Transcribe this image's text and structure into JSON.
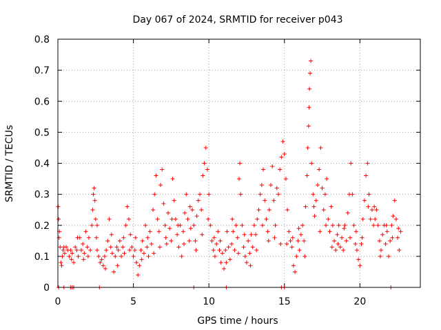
{
  "chart_data": {
    "type": "scatter",
    "title": "Day 067 of 2024, SRMTID for receiver p043",
    "xlabel": "GPS time / hours",
    "ylabel": "SRMTID / TECUs",
    "xlim": [
      0,
      24
    ],
    "ylim": [
      0,
      0.8
    ],
    "x_ticks": [
      0,
      5,
      10,
      15,
      20
    ],
    "x_tick_labels": [
      "0",
      "5",
      "10",
      "15",
      "20"
    ],
    "y_ticks": [
      0,
      0.1,
      0.2,
      0.3,
      0.4,
      0.5,
      0.6,
      0.7,
      0.8
    ],
    "y_tick_labels": [
      "0",
      "0.1",
      "0.2",
      "0.3",
      "0.4",
      "0.5",
      "0.6",
      "0.7",
      "0.8"
    ],
    "grid": true,
    "marker": "+",
    "series_color": "#ff0000",
    "series": [
      {
        "name": "SRMTID",
        "points": [
          [
            0.02,
            0.26
          ],
          [
            0.05,
            0.22
          ],
          [
            0.1,
            0.18
          ],
          [
            0.15,
            0.13
          ],
          [
            0.2,
            0.08
          ],
          [
            0.25,
            0.07
          ],
          [
            0.3,
            0.1
          ],
          [
            0.35,
            0.12
          ],
          [
            0.45,
            0.11
          ],
          [
            0.55,
            0.13
          ],
          [
            0.65,
            0.12
          ],
          [
            0.75,
            0.1
          ],
          [
            0.85,
            0.12
          ],
          [
            0.95,
            0.11
          ],
          [
            1.05,
            0.08
          ],
          [
            1.15,
            0.13
          ],
          [
            1.25,
            0.12
          ],
          [
            1.35,
            0.1
          ],
          [
            1.45,
            0.16
          ],
          [
            1.55,
            0.12
          ],
          [
            1.65,
            0.14
          ],
          [
            1.75,
            0.11
          ],
          [
            1.85,
            0.18
          ],
          [
            1.95,
            0.13
          ],
          [
            2.05,
            0.16
          ],
          [
            2.15,
            0.12
          ],
          [
            2.25,
            0.2
          ],
          [
            2.3,
            0.25
          ],
          [
            2.35,
            0.3
          ],
          [
            2.4,
            0.32
          ],
          [
            2.45,
            0.28
          ],
          [
            2.5,
            0.22
          ],
          [
            2.55,
            0.16
          ],
          [
            2.6,
            0.12
          ],
          [
            2.7,
            0.1
          ],
          [
            2.8,
            0.08
          ],
          [
            2.9,
            0.09
          ],
          [
            3.0,
            0.07
          ],
          [
            3.1,
            0.1
          ],
          [
            3.2,
            0.12
          ],
          [
            3.3,
            0.15
          ],
          [
            3.4,
            0.22
          ],
          [
            3.5,
            0.13
          ],
          [
            3.6,
            0.11
          ],
          [
            3.7,
            0.05
          ],
          [
            3.8,
            0.1
          ],
          [
            3.9,
            0.13
          ],
          [
            4.0,
            0.12
          ],
          [
            4.1,
            0.15
          ],
          [
            4.2,
            0.1
          ],
          [
            4.3,
            0.13
          ],
          [
            4.4,
            0.11
          ],
          [
            4.5,
            0.2
          ],
          [
            4.6,
            0.26
          ],
          [
            4.7,
            0.22
          ],
          [
            4.8,
            0.17
          ],
          [
            4.9,
            0.13
          ],
          [
            5.0,
            0.1
          ],
          [
            5.1,
            0.12
          ],
          [
            5.2,
            0.08
          ],
          [
            5.3,
            0.04
          ],
          [
            5.4,
            0.07
          ],
          [
            5.5,
            0.12
          ],
          [
            5.6,
            0.15
          ],
          [
            5.7,
            0.11
          ],
          [
            5.8,
            0.2
          ],
          [
            5.9,
            0.13
          ],
          [
            6.0,
            0.1
          ],
          [
            6.1,
            0.18
          ],
          [
            6.2,
            0.14
          ],
          [
            6.3,
            0.25
          ],
          [
            6.4,
            0.3
          ],
          [
            6.5,
            0.36
          ],
          [
            6.6,
            0.22
          ],
          [
            6.7,
            0.18
          ],
          [
            6.8,
            0.33
          ],
          [
            6.9,
            0.38
          ],
          [
            7.0,
            0.27
          ],
          [
            7.1,
            0.2
          ],
          [
            7.2,
            0.14
          ],
          [
            7.3,
            0.24
          ],
          [
            7.4,
            0.19
          ],
          [
            7.5,
            0.15
          ],
          [
            7.6,
            0.35
          ],
          [
            7.7,
            0.28
          ],
          [
            7.8,
            0.22
          ],
          [
            7.9,
            0.17
          ],
          [
            8.0,
            0.13
          ],
          [
            8.1,
            0.2
          ],
          [
            8.2,
            0.1
          ],
          [
            8.3,
            0.18
          ],
          [
            8.4,
            0.24
          ],
          [
            8.5,
            0.3
          ],
          [
            8.6,
            0.22
          ],
          [
            8.7,
            0.15
          ],
          [
            8.8,
            0.19
          ],
          [
            8.9,
            0.25
          ],
          [
            9.0,
            0.2
          ],
          [
            9.1,
            0.15
          ],
          [
            9.2,
            0.23
          ],
          [
            9.3,
            0.28
          ],
          [
            9.4,
            0.3
          ],
          [
            9.5,
            0.25
          ],
          [
            9.6,
            0.36
          ],
          [
            9.7,
            0.4
          ],
          [
            9.8,
            0.45
          ],
          [
            9.9,
            0.38
          ],
          [
            10.0,
            0.3
          ],
          [
            10.1,
            0.2
          ],
          [
            10.2,
            0.15
          ],
          [
            10.3,
            0.12
          ],
          [
            10.4,
            0.1
          ],
          [
            10.5,
            0.14
          ],
          [
            10.6,
            0.18
          ],
          [
            10.7,
            0.12
          ],
          [
            10.8,
            0.08
          ],
          [
            10.9,
            0.11
          ],
          [
            11.0,
            0.06
          ],
          [
            11.1,
            0.12
          ],
          [
            11.2,
            0.18
          ],
          [
            11.3,
            0.13
          ],
          [
            11.4,
            0.09
          ],
          [
            11.5,
            0.14
          ],
          [
            11.6,
            0.18
          ],
          [
            11.7,
            0.12
          ],
          [
            11.8,
            0.2
          ],
          [
            11.9,
            0.16
          ],
          [
            12.0,
            0.35
          ],
          [
            12.05,
            0.4
          ],
          [
            12.1,
            0.3
          ],
          [
            12.2,
            0.2
          ],
          [
            12.3,
            0.13
          ],
          [
            12.4,
            0.1
          ],
          [
            12.5,
            0.08
          ],
          [
            12.6,
            0.15
          ],
          [
            12.7,
            0.11
          ],
          [
            12.8,
            0.17
          ],
          [
            12.9,
            0.13
          ],
          [
            13.0,
            0.2
          ],
          [
            13.1,
            0.17
          ],
          [
            13.2,
            0.22
          ],
          [
            13.3,
            0.25
          ],
          [
            13.4,
            0.3
          ],
          [
            13.5,
            0.33
          ],
          [
            13.6,
            0.38
          ],
          [
            13.7,
            0.28
          ],
          [
            13.8,
            0.22
          ],
          [
            13.9,
            0.18
          ],
          [
            14.0,
            0.25
          ],
          [
            14.1,
            0.33
          ],
          [
            14.2,
            0.39
          ],
          [
            14.3,
            0.28
          ],
          [
            14.4,
            0.2
          ],
          [
            14.5,
            0.32
          ],
          [
            14.6,
            0.3
          ],
          [
            14.7,
            0.38
          ],
          [
            14.8,
            0.42
          ],
          [
            14.9,
            0.47
          ],
          [
            15.0,
            0.43
          ],
          [
            15.1,
            0.35
          ],
          [
            15.2,
            0.25
          ],
          [
            15.3,
            0.18
          ],
          [
            15.4,
            0.15
          ],
          [
            15.5,
            0.13
          ],
          [
            15.6,
            0.07
          ],
          [
            15.7,
            0.05
          ],
          [
            15.8,
            0.1
          ],
          [
            15.9,
            0.15
          ],
          [
            16.0,
            0.12
          ],
          [
            16.1,
            0.17
          ],
          [
            16.2,
            0.2
          ],
          [
            16.3,
            0.15
          ],
          [
            16.4,
            0.26
          ],
          [
            16.5,
            0.36
          ],
          [
            16.55,
            0.45
          ],
          [
            16.6,
            0.52
          ],
          [
            16.63,
            0.58
          ],
          [
            16.66,
            0.64
          ],
          [
            16.7,
            0.69
          ],
          [
            16.75,
            0.73
          ],
          [
            16.8,
            0.4
          ],
          [
            16.9,
            0.3
          ],
          [
            17.0,
            0.23
          ],
          [
            17.1,
            0.28
          ],
          [
            17.2,
            0.33
          ],
          [
            17.3,
            0.38
          ],
          [
            17.4,
            0.45
          ],
          [
            17.5,
            0.32
          ],
          [
            17.6,
            0.25
          ],
          [
            17.7,
            0.3
          ],
          [
            17.8,
            0.35
          ],
          [
            17.9,
            0.22
          ],
          [
            18.0,
            0.18
          ],
          [
            18.1,
            0.26
          ],
          [
            18.2,
            0.2
          ],
          [
            18.3,
            0.15
          ],
          [
            18.4,
            0.12
          ],
          [
            18.5,
            0.17
          ],
          [
            18.6,
            0.2
          ],
          [
            18.7,
            0.13
          ],
          [
            18.8,
            0.16
          ],
          [
            18.9,
            0.12
          ],
          [
            19.0,
            0.2
          ],
          [
            19.1,
            0.15
          ],
          [
            19.2,
            0.24
          ],
          [
            19.3,
            0.3
          ],
          [
            19.4,
            0.4
          ],
          [
            19.5,
            0.3
          ],
          [
            19.6,
            0.2
          ],
          [
            19.7,
            0.14
          ],
          [
            19.8,
            0.12
          ],
          [
            19.9,
            0.09
          ],
          [
            20.0,
            0.07
          ],
          [
            20.1,
            0.14
          ],
          [
            20.2,
            0.22
          ],
          [
            20.3,
            0.28
          ],
          [
            20.4,
            0.36
          ],
          [
            20.5,
            0.4
          ],
          [
            20.6,
            0.3
          ],
          [
            20.7,
            0.22
          ],
          [
            20.8,
            0.25
          ],
          [
            20.9,
            0.2
          ],
          [
            21.0,
            0.22
          ],
          [
            21.1,
            0.25
          ],
          [
            21.2,
            0.2
          ],
          [
            21.3,
            0.15
          ],
          [
            21.4,
            0.12
          ],
          [
            21.5,
            0.17
          ],
          [
            21.6,
            0.2
          ],
          [
            21.7,
            0.14
          ],
          [
            21.8,
            0.18
          ],
          [
            21.9,
            0.1
          ],
          [
            22.0,
            0.15
          ],
          [
            22.1,
            0.2
          ],
          [
            22.2,
            0.23
          ],
          [
            22.3,
            0.28
          ],
          [
            22.4,
            0.22
          ],
          [
            22.5,
            0.16
          ],
          [
            22.6,
            0.12
          ],
          [
            22.7,
            0.18
          ],
          [
            0.08,
            0.16
          ],
          [
            0.4,
            0.13
          ],
          [
            0.9,
            0.09
          ],
          [
            1.3,
            0.16
          ],
          [
            1.7,
            0.09
          ],
          [
            2.0,
            0.1
          ],
          [
            2.6,
            0.2
          ],
          [
            3.15,
            0.06
          ],
          [
            3.55,
            0.17
          ],
          [
            3.95,
            0.07
          ],
          [
            4.35,
            0.16
          ],
          [
            4.75,
            0.12
          ],
          [
            5.15,
            0.16
          ],
          [
            5.55,
            0.09
          ],
          [
            5.95,
            0.16
          ],
          [
            6.35,
            0.11
          ],
          [
            6.75,
            0.13
          ],
          [
            7.15,
            0.16
          ],
          [
            7.55,
            0.22
          ],
          [
            7.95,
            0.2
          ],
          [
            8.35,
            0.14
          ],
          [
            8.75,
            0.26
          ],
          [
            9.15,
            0.12
          ],
          [
            9.55,
            0.17
          ],
          [
            9.95,
            0.22
          ],
          [
            10.35,
            0.16
          ],
          [
            10.75,
            0.15
          ],
          [
            11.15,
            0.08
          ],
          [
            11.55,
            0.22
          ],
          [
            11.95,
            0.11
          ],
          [
            12.35,
            0.17
          ],
          [
            12.75,
            0.07
          ],
          [
            13.15,
            0.12
          ],
          [
            13.55,
            0.2
          ],
          [
            13.95,
            0.15
          ],
          [
            14.35,
            0.16
          ],
          [
            14.75,
            0.14
          ],
          [
            15.15,
            0.14
          ],
          [
            15.55,
            0.16
          ],
          [
            15.95,
            0.19
          ],
          [
            16.35,
            0.1
          ],
          [
            16.95,
            0.26
          ],
          [
            17.35,
            0.18
          ],
          [
            17.75,
            0.2
          ],
          [
            18.15,
            0.13
          ],
          [
            18.55,
            0.14
          ],
          [
            18.95,
            0.19
          ],
          [
            19.35,
            0.16
          ],
          [
            19.75,
            0.18
          ],
          [
            20.15,
            0.16
          ],
          [
            20.55,
            0.26
          ],
          [
            20.95,
            0.26
          ],
          [
            21.35,
            0.1
          ],
          [
            21.75,
            0.2
          ],
          [
            22.15,
            0.16
          ],
          [
            22.55,
            0.19
          ],
          [
            0.05,
            0.0
          ],
          [
            0.4,
            0.0
          ],
          [
            0.85,
            0.0
          ],
          [
            0.95,
            0.0
          ],
          [
            1.05,
            0.0
          ],
          [
            2.75,
            0.0
          ],
          [
            9.0,
            0.0
          ],
          [
            11.15,
            0.0
          ],
          [
            14.8,
            0.0
          ],
          [
            15.0,
            0.0
          ],
          [
            22.05,
            0.0
          ]
        ]
      }
    ]
  }
}
